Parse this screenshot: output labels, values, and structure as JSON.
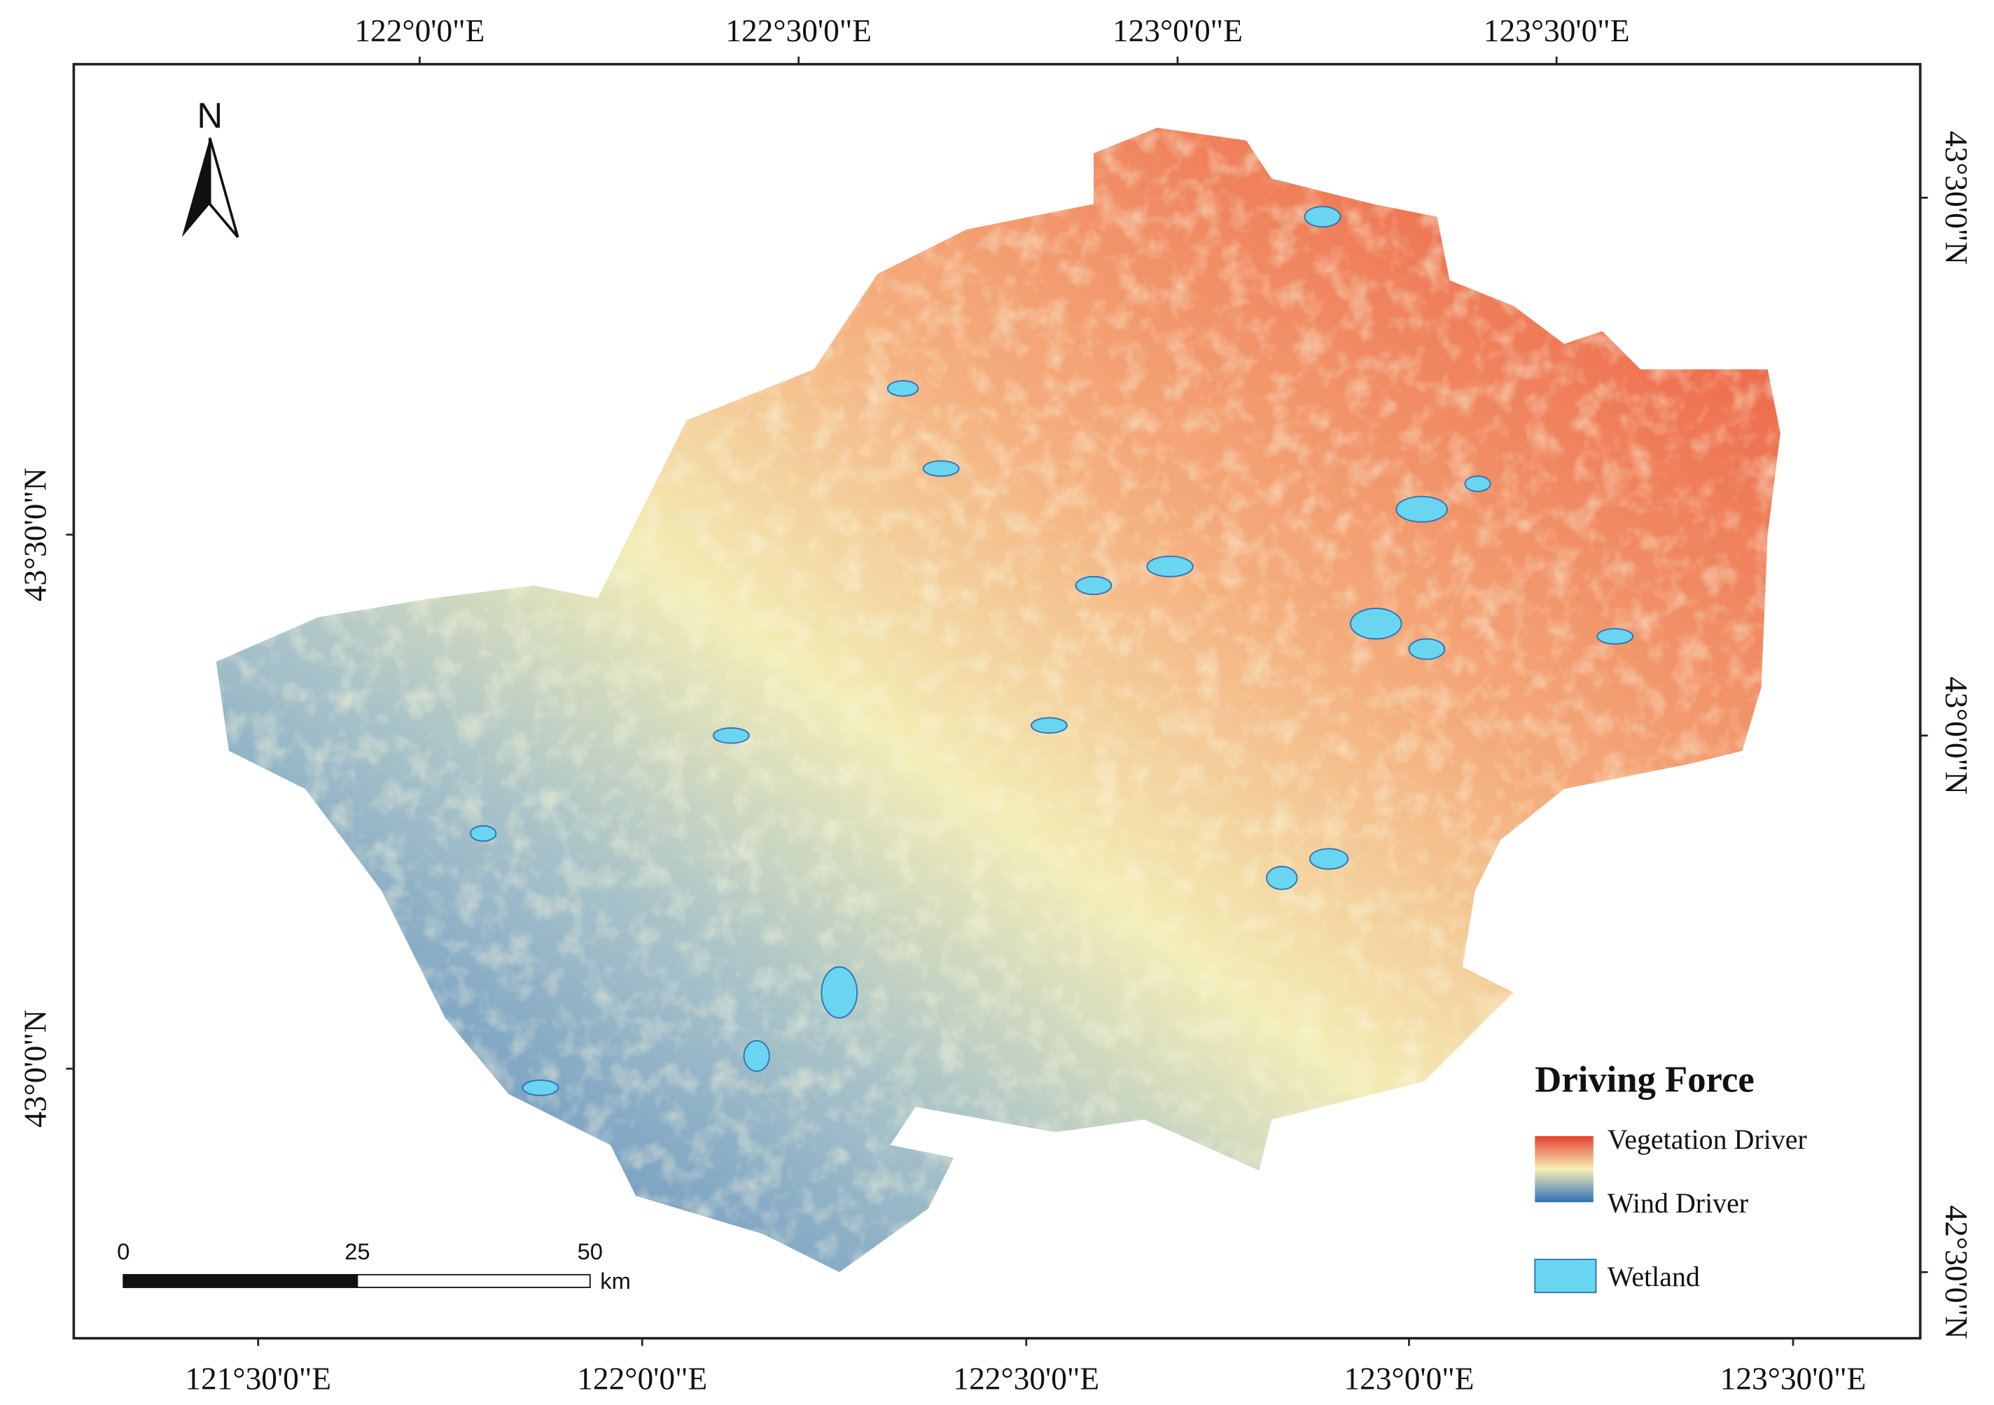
{
  "top_axis_labels": [
    "122°0'0\"E",
    "122°30'0\"E",
    "123°0'0\"E",
    "123°30'0\"E"
  ],
  "bottom_axis_labels": [
    "121°30'0\"E",
    "122°0'0\"E",
    "122°30'0\"E",
    "123°0'0\"E",
    "123°30'0\"E"
  ],
  "left_axis_labels": [
    "43°30'0\"N",
    "43°0'0\"N"
  ],
  "right_axis_labels": [
    "43°30'0\"N",
    "43°0'0\"N",
    "42°30'0\"N"
  ],
  "north_arrow": {
    "label": "N"
  },
  "scale_bar": {
    "labels": [
      "0",
      "25",
      "50"
    ],
    "unit": "km"
  },
  "legend": {
    "title": "Driving Force",
    "items": [
      "Vegetation Driver",
      "Wind Driver",
      "Wetland"
    ]
  }
}
